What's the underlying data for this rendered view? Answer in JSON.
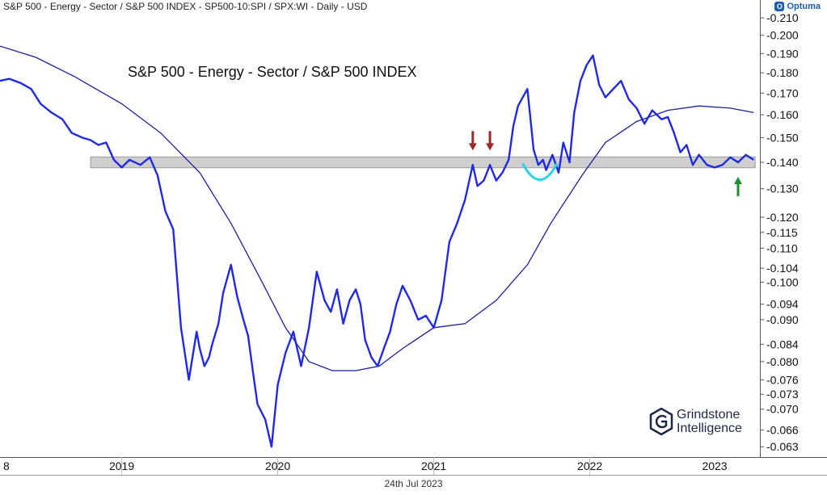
{
  "header": {
    "instrument_label": "S&P 500 - Energy - Sector  / S&P 500 INDEX - SP500-10:SPI / SPX:WI - Daily - USD"
  },
  "branding": {
    "platform_logo": "Optuma",
    "watermark_line1": "Grindstone",
    "watermark_line2": "Intelligence"
  },
  "footer": {
    "date_label": "24th Jul 2023"
  },
  "colors": {
    "series": "#1f2ae0",
    "moving_average": "#1b1f9c",
    "support_band": "#cfcfcf",
    "cup_marker": "#27d3e6",
    "arrow_down": "#9c2a2a",
    "arrow_up": "#1f8f2b"
  },
  "chart_data": {
    "type": "line",
    "title": "S&P 500 - Energy - Sector  / S&P 500 INDEX",
    "xlabel": "",
    "ylabel": "",
    "y_scale": "log",
    "ylim": [
      0.0612,
      0.212
    ],
    "xlim": [
      2018.72,
      2023.59
    ],
    "x_tick_labels": [
      "8",
      "2019",
      "2020",
      "2021",
      "2022",
      "2023"
    ],
    "y_tick_labels": [
      "0.063",
      "0.066",
      "0.070",
      "0.073",
      "0.076",
      "0.080",
      "0.084",
      "0.090",
      "0.094",
      "0.100",
      "0.104",
      "0.110",
      "0.115",
      "0.120",
      "0.130",
      "0.140",
      "0.150",
      "0.160",
      "0.170",
      "0.180",
      "0.190",
      "0.200",
      "0.210"
    ],
    "grid": false,
    "legend": "none",
    "series": [
      {
        "values_x": [
          2018.72,
          2018.78,
          2018.85,
          2018.92,
          2018.98,
          2019.05,
          2019.12,
          2019.18,
          2019.25,
          2019.3,
          2019.35,
          2019.4,
          2019.45,
          2019.5,
          2019.55,
          2019.62,
          2019.68,
          2019.73,
          2019.78,
          2019.83,
          2019.88,
          2019.93,
          2019.98,
          2020.0,
          2020.03,
          2020.06,
          2020.08,
          2020.12,
          2020.15,
          2020.2,
          2020.24,
          2020.28,
          2020.31,
          2020.34,
          2020.37,
          2020.42,
          2020.46,
          2020.5,
          2020.55,
          2020.6,
          2020.65,
          2020.7,
          2020.75,
          2020.8,
          2020.84,
          2020.88,
          2020.92,
          2020.96,
          2021.0,
          2021.03,
          2021.06,
          2021.1,
          2021.14,
          2021.18,
          2021.22,
          2021.26,
          2021.3,
          2021.35,
          2021.4,
          2021.45,
          2021.5,
          2021.55,
          2021.6,
          2021.65,
          2021.7,
          2021.75,
          2021.78,
          2021.82,
          2021.86,
          2021.9,
          2021.94,
          2021.98,
          2022.01,
          2022.04,
          2022.07,
          2022.1,
          2022.14,
          2022.17,
          2022.2,
          2022.22,
          2022.26,
          2022.3,
          2022.33,
          2022.37,
          2022.4,
          2022.44,
          2022.48,
          2022.52,
          2022.56,
          2022.6,
          2022.65,
          2022.7,
          2022.75,
          2022.8,
          2022.85,
          2022.9,
          2022.96,
          2023.0,
          2023.04,
          2023.08,
          2023.12,
          2023.16,
          2023.2,
          2023.25,
          2023.3,
          2023.35,
          2023.4,
          2023.45,
          2023.5,
          2023.55
        ],
        "values": [
          0.176,
          0.177,
          0.175,
          0.172,
          0.165,
          0.161,
          0.158,
          0.152,
          0.15,
          0.149,
          0.147,
          0.148,
          0.141,
          0.138,
          0.141,
          0.139,
          0.142,
          0.135,
          0.122,
          0.116,
          0.088,
          0.076,
          0.087,
          0.083,
          0.079,
          0.081,
          0.084,
          0.089,
          0.097,
          0.105,
          0.096,
          0.09,
          0.086,
          0.078,
          0.071,
          0.068,
          0.063,
          0.075,
          0.082,
          0.087,
          0.079,
          0.088,
          0.103,
          0.095,
          0.092,
          0.098,
          0.089,
          0.095,
          0.098,
          0.094,
          0.085,
          0.081,
          0.079,
          0.083,
          0.087,
          0.094,
          0.099,
          0.095,
          0.09,
          0.091,
          0.088,
          0.095,
          0.112,
          0.118,
          0.126,
          0.139,
          0.131,
          0.133,
          0.139,
          0.133,
          0.136,
          0.141,
          0.155,
          0.164,
          0.168,
          0.172,
          0.145,
          0.139,
          0.141,
          0.137,
          0.143,
          0.136,
          0.148,
          0.14,
          0.161,
          0.176,
          0.184,
          0.189,
          0.174,
          0.168,
          0.172,
          0.176,
          0.167,
          0.163,
          0.156,
          0.162,
          0.158,
          0.159,
          0.152,
          0.144,
          0.147,
          0.139,
          0.143,
          0.139,
          0.138,
          0.139,
          0.142,
          0.14,
          0.143,
          0.141
        ]
      },
      {
        "values_x": [
          2018.72,
          2018.95,
          2019.2,
          2019.5,
          2019.75,
          2020.0,
          2020.2,
          2020.4,
          2020.55,
          2020.7,
          2020.85,
          2021.0,
          2021.15,
          2021.3,
          2021.5,
          2021.7,
          2021.9,
          2022.1,
          2022.25,
          2022.45,
          2022.6,
          2022.8,
          2023.0,
          2023.2,
          2023.4,
          2023.55
        ],
        "values": [
          0.194,
          0.188,
          0.178,
          0.165,
          0.152,
          0.136,
          0.118,
          0.1,
          0.088,
          0.08,
          0.078,
          0.078,
          0.079,
          0.083,
          0.088,
          0.089,
          0.095,
          0.105,
          0.118,
          0.135,
          0.148,
          0.157,
          0.162,
          0.164,
          0.163,
          0.161
        ]
      }
    ],
    "reference_band": {
      "ymin": 0.1385,
      "ymax": 0.1415
    }
  }
}
